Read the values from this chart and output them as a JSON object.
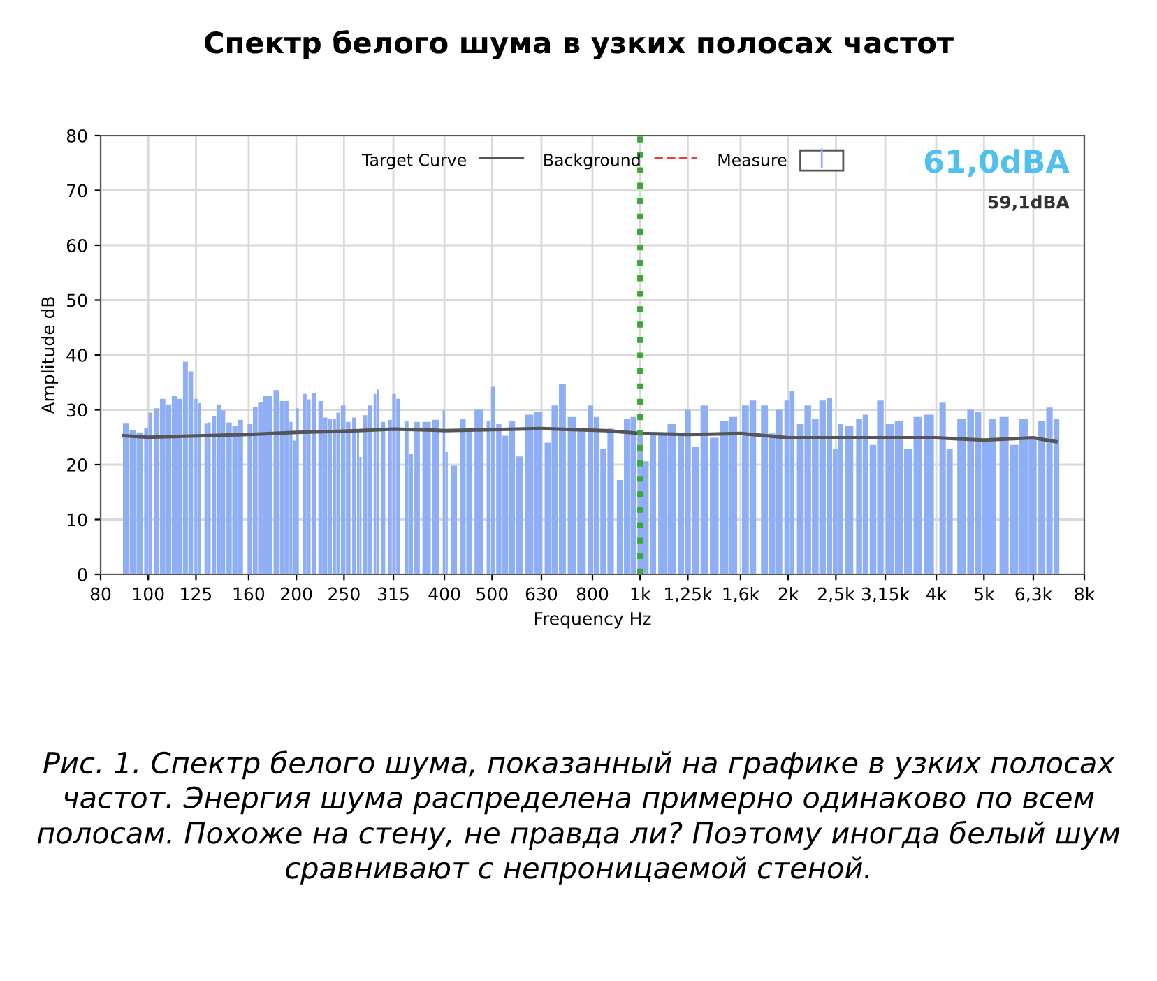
{
  "chart_data": {
    "type": "bar",
    "title": "Спектр белого шума в узких полосах частот",
    "xlabel": "Frequency Hz",
    "ylabel": "Amplitude dB",
    "log": "x",
    "xlim": [
      80,
      8000
    ],
    "xticks": [
      80,
      100,
      125,
      160,
      200,
      250,
      315,
      400,
      500,
      630,
      800,
      {
        "value": 1000,
        "label": "1k"
      },
      {
        "value": 1250,
        "label": "1,25k"
      },
      {
        "value": 1600,
        "label": "1,6k"
      },
      {
        "value": 2000,
        "label": "2k"
      },
      {
        "value": 2500,
        "label": "2,5k"
      },
      {
        "value": 3150,
        "label": "3,15k"
      },
      {
        "value": 4000,
        "label": "4k"
      },
      {
        "value": 5000,
        "label": "5k"
      },
      {
        "value": 6300,
        "label": "6,3k"
      },
      {
        "value": 8000,
        "label": "8k"
      }
    ],
    "ylim": [
      0,
      80
    ],
    "yticks": [
      0,
      10,
      20,
      30,
      40,
      50,
      60,
      70,
      80
    ],
    "grid": true,
    "legend": "top",
    "line_style": "solid",
    "marker": "none",
    "series": [
      {
        "name": "Target Curve",
        "type": "line",
        "color": "#555555",
        "x": [
          89,
          100,
          160,
          200,
          250,
          315,
          380,
          400,
          630,
          850,
          1000,
          1250,
          1600,
          2000,
          3000,
          4000,
          5000,
          6300,
          7000
        ],
        "values": [
          25.3,
          25,
          25.5,
          25.9,
          26.1,
          26.5,
          26.3,
          26.2,
          26.6,
          26.2,
          25.7,
          25.5,
          25.7,
          24.9,
          24.9,
          24.9,
          24.5,
          24.9,
          24.2
        ]
      },
      {
        "name": "Background",
        "type": "line",
        "color": "#e8413c",
        "line_style": "dashed"
      },
      {
        "name": "Measure",
        "color": "#8eaef5",
        "x": [
          90,
          93,
          96,
          99,
          101,
          104,
          107,
          110,
          113,
          116,
          119,
          122,
          125,
          127,
          131,
          133,
          136,
          139,
          142,
          146,
          150,
          154,
          161,
          165,
          169,
          173,
          177,
          182,
          187,
          191,
          195,
          198,
          201,
          208,
          212,
          217,
          224,
          229,
          234,
          239,
          243,
          249,
          255,
          262,
          267,
          270,
          276,
          282,
          289,
          293,
          300,
          310,
          316,
          322,
          335,
          342,
          352,
          368,
          384,
          399,
          404,
          418,
          436,
          449,
          470,
          492,
          502,
          516,
          532,
          549,
          569,
          595,
          621,
          649,
          670,
          695,
          727,
          760,
          793,
          815,
          842,
          871,
          910,
          940,
          969,
          1000,
          1028,
          1062,
          1110,
          1159,
          1211,
          1250,
          1297,
          1351,
          1415,
          1483,
          1546,
          1637,
          1695,
          1790,
          1854,
          1917,
          1987,
          2037,
          2117,
          2192,
          2270,
          2349,
          2428,
          2492,
          2554,
          2663,
          2787,
          2873,
          2975,
          3079,
          3218,
          3356,
          3510,
          3667,
          3866,
          4121,
          4258,
          4502,
          4698,
          4862,
          5035,
          5204,
          5495,
          5755,
          6020,
          6280,
          6557,
          6795,
          7020
        ],
        "values": [
          27.5,
          26.3,
          25.9,
          26.7,
          29.5,
          30.3,
          32,
          31,
          32.5,
          32,
          38.8,
          37,
          32,
          31.2,
          27.5,
          27.7,
          28.8,
          31,
          29.9,
          27.7,
          27.1,
          28.2,
          27.4,
          30.5,
          31.4,
          32.5,
          32.5,
          33.6,
          31.6,
          31.6,
          27.8,
          24.4,
          30.3,
          32.9,
          31.9,
          33.1,
          31.6,
          28.6,
          28.4,
          28.4,
          29.5,
          30.8,
          27.8,
          28.6,
          26.1,
          21.4,
          29,
          30.8,
          32.9,
          33.7,
          27.8,
          28.2,
          32.9,
          32,
          28,
          21.9,
          27.8,
          27.8,
          28.2,
          29.9,
          22.3,
          19.8,
          28.3,
          26.6,
          30,
          27.9,
          34.2,
          27.4,
          25.3,
          27.9,
          21.5,
          29.1,
          29.6,
          24,
          30.8,
          34.7,
          28.7,
          26.6,
          30.8,
          28.7,
          22.8,
          26.6,
          17.2,
          28.3,
          28.7,
          26.2,
          20.6,
          25.7,
          25.7,
          27.4,
          25.7,
          30,
          23.2,
          30.8,
          24.9,
          27.9,
          28.7,
          30.8,
          31.7,
          30.8,
          25.7,
          30,
          31.7,
          33.4,
          27.4,
          30.8,
          28.3,
          31.7,
          32.1,
          22.8,
          27.4,
          27,
          28.3,
          29.1,
          23.6,
          31.7,
          27.4,
          27.9,
          22.8,
          28.7,
          29.1,
          31.3,
          22.8,
          28.3,
          30,
          29.6,
          24.5,
          28.3,
          28.7,
          23.6,
          28.3,
          24.9,
          27.9,
          30.4,
          28.3
        ]
      }
    ],
    "ref_lines": [
      {
        "axis": "x",
        "value": 1000,
        "color": "#3aaa35",
        "line_style": "dotted"
      }
    ],
    "annotations": [
      "61,0dBA",
      "59,1dBA",
      "Рис. 1. Спектр белого шума, показанный на графике в узких полосах частот. Энергия шума распределена примерно одинаково по всем полосам. Похоже на стену, не правда ли? Поэтому иногда белый шум сравнивают с непроницаемой стеной."
    ]
  }
}
